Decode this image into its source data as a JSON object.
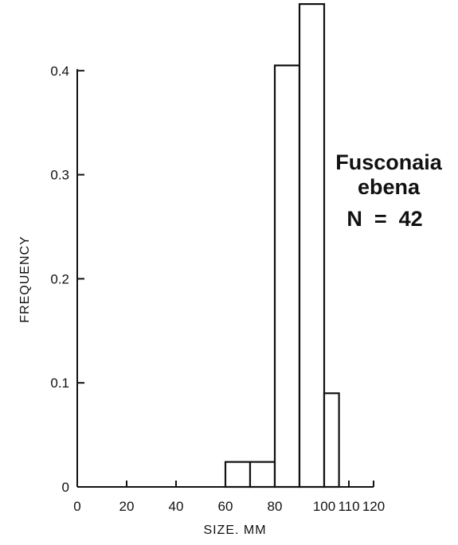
{
  "chart_data": {
    "type": "bar",
    "title": "",
    "xlabel": "SIZE. MM",
    "ylabel": "FREQUENCY",
    "xlim": [
      0,
      120
    ],
    "ylim": [
      0,
      0.45
    ],
    "x_ticks": [
      0,
      20,
      40,
      60,
      80,
      100,
      110,
      120
    ],
    "y_ticks": [
      0,
      0.1,
      0.2,
      0.3,
      0.4
    ],
    "y_tick_labels": [
      "0",
      "0.1",
      "0.2",
      "0.3",
      "0.4"
    ],
    "bins": [
      {
        "start": 60,
        "end": 70,
        "value": 0.024
      },
      {
        "start": 70,
        "end": 80,
        "value": 0.024
      },
      {
        "start": 80,
        "end": 90,
        "value": 0.405
      },
      {
        "start": 90,
        "end": 100,
        "value": 0.464
      },
      {
        "start": 100,
        "end": 106,
        "value": 0.09
      }
    ],
    "grid": false,
    "annotations": {
      "species_line1": "Fusconaia",
      "species_line2": "ebena",
      "n_label": "N  =  42"
    }
  }
}
